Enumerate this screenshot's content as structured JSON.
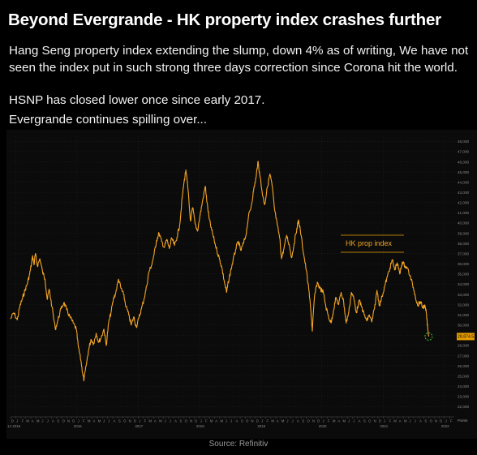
{
  "headline": "Beyond Evergrande - HK property index crashes further",
  "paragraphs": [
    "Hang Seng property index extending the slump, down 4% as of writing, We have not seen the index put in such strong three days correction since Corona hit the world.",
    "HSNP has closed lower once since early 2017.",
    "Evergrande continues spilling over..."
  ],
  "source": "Source: Refinitiv",
  "colors": {
    "background": "#000000",
    "plot_background": "#0b0b0b",
    "line": "#f5a623",
    "grid": "#2a2a2a",
    "marker": "#3fbf3f",
    "last_price_tag": "#e8a000"
  },
  "chart_data": {
    "type": "line",
    "title": "",
    "legend_label": "HK prop index",
    "legend_position": "center-right",
    "grid": true,
    "ylim": [
      21000,
      48500
    ],
    "yticks": [
      {
        "value": 48000,
        "label": "48,000"
      },
      {
        "value": 47000,
        "label": "47,000"
      },
      {
        "value": 46000,
        "label": "46,000"
      },
      {
        "value": 45000,
        "label": "45,000"
      },
      {
        "value": 44000,
        "label": "44,000"
      },
      {
        "value": 43000,
        "label": "43,000"
      },
      {
        "value": 42000,
        "label": "42,000"
      },
      {
        "value": 41000,
        "label": "41,000"
      },
      {
        "value": 40000,
        "label": "40,000"
      },
      {
        "value": 39000,
        "label": "39,000"
      },
      {
        "value": 38000,
        "label": "38,000"
      },
      {
        "value": 37000,
        "label": "37,000"
      },
      {
        "value": 36000,
        "label": "36,000"
      },
      {
        "value": 35000,
        "label": "35,000"
      },
      {
        "value": 34000,
        "label": "34,000"
      },
      {
        "value": 33000,
        "label": "33,000"
      },
      {
        "value": 32000,
        "label": "32,000"
      },
      {
        "value": 31000,
        "label": "31,000"
      },
      {
        "value": 30000,
        "label": "30,000"
      },
      {
        "value": 29000,
        "label": "29,000"
      },
      {
        "value": 28000,
        "label": "28,000"
      },
      {
        "value": 27000,
        "label": "27,000"
      },
      {
        "value": 26000,
        "label": "26,000"
      },
      {
        "value": 25000,
        "label": "25,000"
      },
      {
        "value": 24000,
        "label": "24,000"
      },
      {
        "value": 23000,
        "label": "23,000"
      },
      {
        "value": 22000,
        "label": "22,000"
      }
    ],
    "y_unit_label": "Points",
    "last_value": 28874.52,
    "last_value_label": "28,874.52",
    "xlim": [
      "2014-12-01",
      "2022-03-01"
    ],
    "month_labels": [
      "D",
      "J",
      "F",
      "M",
      "A",
      "M",
      "J",
      "J",
      "A",
      "S",
      "O",
      "N",
      "D",
      "J",
      "F",
      "M",
      "A",
      "M",
      "J",
      "J",
      "A",
      "S",
      "O",
      "N",
      "D",
      "J",
      "F",
      "M",
      "A",
      "M",
      "J",
      "J",
      "A",
      "S",
      "O",
      "N",
      "D",
      "J",
      "F",
      "M",
      "A",
      "M",
      "J",
      "J",
      "A",
      "S",
      "O",
      "N",
      "D",
      "J",
      "F",
      "M",
      "A",
      "M",
      "J",
      "J",
      "A",
      "S",
      "O",
      "N",
      "D",
      "J",
      "F",
      "M",
      "A",
      "M",
      "J",
      "J",
      "A",
      "S",
      "O",
      "N",
      "D",
      "J",
      "F",
      "M",
      "A",
      "M",
      "J",
      "J",
      "A",
      "S",
      "O",
      "N",
      "D",
      "J",
      "F"
    ],
    "year_labels": [
      {
        "date": "2014-12-01",
        "label": "14"
      },
      {
        "date": "2015-01-01",
        "label": "2015"
      },
      {
        "date": "2016-01-01",
        "label": "2016"
      },
      {
        "date": "2017-01-01",
        "label": "2017"
      },
      {
        "date": "2018-01-01",
        "label": "2018"
      },
      {
        "date": "2019-01-01",
        "label": "2019"
      },
      {
        "date": "2020-01-01",
        "label": "2020"
      },
      {
        "date": "2021-01-01",
        "label": "2021"
      },
      {
        "date": "2022-01-01",
        "label": "2022"
      }
    ],
    "series": [
      {
        "name": "HK prop index",
        "points": [
          [
            "2014-12-01",
            30600
          ],
          [
            "2014-12-20",
            31200
          ],
          [
            "2015-01-10",
            30500
          ],
          [
            "2015-01-25",
            31800
          ],
          [
            "2015-02-10",
            32600
          ],
          [
            "2015-02-25",
            33400
          ],
          [
            "2015-03-10",
            34000
          ],
          [
            "2015-03-25",
            35000
          ],
          [
            "2015-04-05",
            36000
          ],
          [
            "2015-04-12",
            36800
          ],
          [
            "2015-04-20",
            35900
          ],
          [
            "2015-04-28",
            37000
          ],
          [
            "2015-05-10",
            35800
          ],
          [
            "2015-05-25",
            36500
          ],
          [
            "2015-06-10",
            35200
          ],
          [
            "2015-06-25",
            34500
          ],
          [
            "2015-07-08",
            32500
          ],
          [
            "2015-07-20",
            33500
          ],
          [
            "2015-08-05",
            31800
          ],
          [
            "2015-08-25",
            29600
          ],
          [
            "2015-09-10",
            30500
          ],
          [
            "2015-09-28",
            31600
          ],
          [
            "2015-10-15",
            32200
          ],
          [
            "2015-11-01",
            31500
          ],
          [
            "2015-11-20",
            30800
          ],
          [
            "2015-12-10",
            30200
          ],
          [
            "2015-12-28",
            29600
          ],
          [
            "2016-01-10",
            27800
          ],
          [
            "2016-01-25",
            26500
          ],
          [
            "2016-02-05",
            25200
          ],
          [
            "2016-02-12",
            24600
          ],
          [
            "2016-02-25",
            26000
          ],
          [
            "2016-03-10",
            27500
          ],
          [
            "2016-03-25",
            28600
          ],
          [
            "2016-04-10",
            28200
          ],
          [
            "2016-04-25",
            29200
          ],
          [
            "2016-05-10",
            28300
          ],
          [
            "2016-05-25",
            28800
          ],
          [
            "2016-06-10",
            29600
          ],
          [
            "2016-06-24",
            28000
          ],
          [
            "2016-07-08",
            30200
          ],
          [
            "2016-07-22",
            31200
          ],
          [
            "2016-08-05",
            32500
          ],
          [
            "2016-08-20",
            33200
          ],
          [
            "2016-09-05",
            34500
          ],
          [
            "2016-09-20",
            33600
          ],
          [
            "2016-10-05",
            33000
          ],
          [
            "2016-10-20",
            31800
          ],
          [
            "2016-11-05",
            31000
          ],
          [
            "2016-11-20",
            30000
          ],
          [
            "2016-12-05",
            30800
          ],
          [
            "2016-12-20",
            29800
          ],
          [
            "2017-01-05",
            30700
          ],
          [
            "2017-01-20",
            31600
          ],
          [
            "2017-02-05",
            32600
          ],
          [
            "2017-02-20",
            33800
          ],
          [
            "2017-03-05",
            35200
          ],
          [
            "2017-03-20",
            35800
          ],
          [
            "2017-04-05",
            36900
          ],
          [
            "2017-04-20",
            38300
          ],
          [
            "2017-05-05",
            39000
          ],
          [
            "2017-05-20",
            38200
          ],
          [
            "2017-06-05",
            37600
          ],
          [
            "2017-06-20",
            38400
          ],
          [
            "2017-07-05",
            37500
          ],
          [
            "2017-07-20",
            38500
          ],
          [
            "2017-08-05",
            37800
          ],
          [
            "2017-08-20",
            38600
          ],
          [
            "2017-09-05",
            39800
          ],
          [
            "2017-09-20",
            42500
          ],
          [
            "2017-10-01",
            44000
          ],
          [
            "2017-10-12",
            45200
          ],
          [
            "2017-10-25",
            43200
          ],
          [
            "2017-11-08",
            40200
          ],
          [
            "2017-11-22",
            41500
          ],
          [
            "2017-12-05",
            40000
          ],
          [
            "2017-12-20",
            39200
          ],
          [
            "2018-01-05",
            40800
          ],
          [
            "2018-01-20",
            42200
          ],
          [
            "2018-02-05",
            43600
          ],
          [
            "2018-02-15",
            42000
          ],
          [
            "2018-02-28",
            40400
          ],
          [
            "2018-03-15",
            39300
          ],
          [
            "2018-03-30",
            38300
          ],
          [
            "2018-04-15",
            37300
          ],
          [
            "2018-04-30",
            36500
          ],
          [
            "2018-05-15",
            35600
          ],
          [
            "2018-05-30",
            34200
          ],
          [
            "2018-06-12",
            33200
          ],
          [
            "2018-06-22",
            34200
          ],
          [
            "2018-07-05",
            35200
          ],
          [
            "2018-07-20",
            36300
          ],
          [
            "2018-08-05",
            37400
          ],
          [
            "2018-08-20",
            38200
          ],
          [
            "2018-09-05",
            37300
          ],
          [
            "2018-09-20",
            38000
          ],
          [
            "2018-10-05",
            38800
          ],
          [
            "2018-10-20",
            40600
          ],
          [
            "2018-11-05",
            41600
          ],
          [
            "2018-11-20",
            43200
          ],
          [
            "2018-12-05",
            44500
          ],
          [
            "2018-12-15",
            46000
          ],
          [
            "2018-12-25",
            45000
          ],
          [
            "2019-01-10",
            43000
          ],
          [
            "2019-01-25",
            41800
          ],
          [
            "2019-02-10",
            43500
          ],
          [
            "2019-02-25",
            44800
          ],
          [
            "2019-03-10",
            43700
          ],
          [
            "2019-03-25",
            41300
          ],
          [
            "2019-04-10",
            39800
          ],
          [
            "2019-04-25",
            38500
          ],
          [
            "2019-05-05",
            36500
          ],
          [
            "2019-05-20",
            37500
          ],
          [
            "2019-06-05",
            38800
          ],
          [
            "2019-06-20",
            37900
          ],
          [
            "2019-07-05",
            36600
          ],
          [
            "2019-07-20",
            38000
          ],
          [
            "2019-08-05",
            39500
          ],
          [
            "2019-08-15",
            40300
          ],
          [
            "2019-08-30",
            38800
          ],
          [
            "2019-09-15",
            36900
          ],
          [
            "2019-09-30",
            35400
          ],
          [
            "2019-10-15",
            33500
          ],
          [
            "2019-10-28",
            31300
          ],
          [
            "2019-11-05",
            29400
          ],
          [
            "2019-11-18",
            32800
          ],
          [
            "2019-12-05",
            34200
          ],
          [
            "2019-12-20",
            33600
          ],
          [
            "2020-01-10",
            33200
          ],
          [
            "2020-01-25",
            31800
          ],
          [
            "2020-02-10",
            30800
          ],
          [
            "2020-02-25",
            30200
          ],
          [
            "2020-03-10",
            31400
          ],
          [
            "2020-03-25",
            32700
          ],
          [
            "2020-04-10",
            32000
          ],
          [
            "2020-04-25",
            33200
          ],
          [
            "2020-05-10",
            32300
          ],
          [
            "2020-05-25",
            30200
          ],
          [
            "2020-06-10",
            31300
          ],
          [
            "2020-06-25",
            33200
          ],
          [
            "2020-07-10",
            32600
          ],
          [
            "2020-07-25",
            31200
          ],
          [
            "2020-08-10",
            32400
          ],
          [
            "2020-08-25",
            31800
          ],
          [
            "2020-09-10",
            31000
          ],
          [
            "2020-09-25",
            30400
          ],
          [
            "2020-10-10",
            31000
          ],
          [
            "2020-10-25",
            30300
          ],
          [
            "2020-11-10",
            31600
          ],
          [
            "2020-11-25",
            33400
          ],
          [
            "2020-12-10",
            31900
          ],
          [
            "2020-12-25",
            32800
          ],
          [
            "2021-01-10",
            33800
          ],
          [
            "2021-01-25",
            34700
          ],
          [
            "2021-02-10",
            35600
          ],
          [
            "2021-02-25",
            36400
          ],
          [
            "2021-03-10",
            35400
          ],
          [
            "2021-03-25",
            36100
          ],
          [
            "2021-04-10",
            35000
          ],
          [
            "2021-04-25",
            36200
          ],
          [
            "2021-05-10",
            35800
          ],
          [
            "2021-05-25",
            35600
          ],
          [
            "2021-06-10",
            34800
          ],
          [
            "2021-06-25",
            34000
          ],
          [
            "2021-07-10",
            33000
          ],
          [
            "2021-07-25",
            31900
          ],
          [
            "2021-08-10",
            32300
          ],
          [
            "2021-08-25",
            31700
          ],
          [
            "2021-09-05",
            31900
          ],
          [
            "2021-09-15",
            31200
          ],
          [
            "2021-09-24",
            29600
          ],
          [
            "2021-09-29",
            28874.52
          ]
        ]
      }
    ]
  }
}
